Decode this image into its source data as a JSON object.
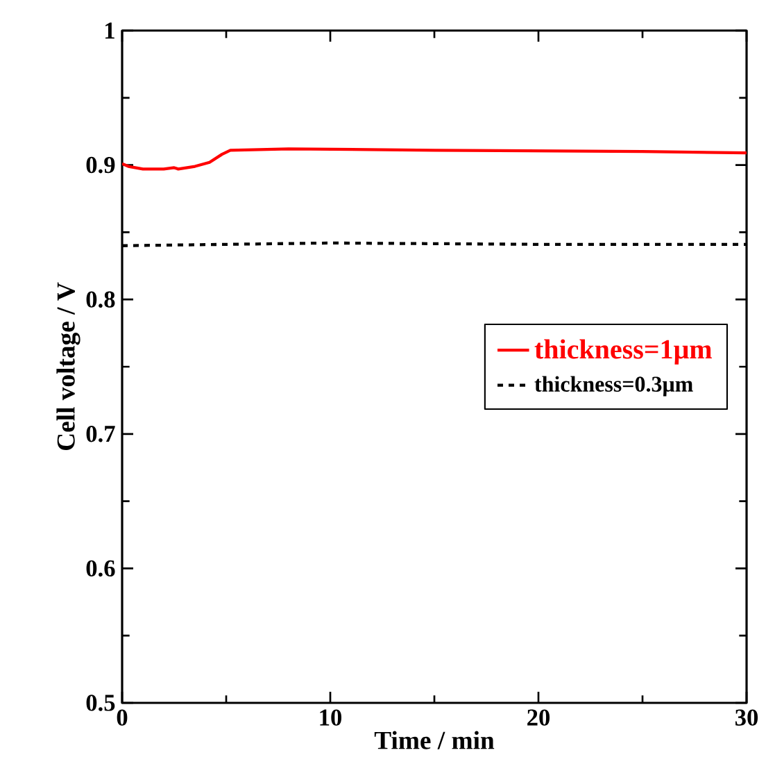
{
  "chart_data": {
    "type": "line",
    "xlabel": "Time / min",
    "ylabel": "Cell voltage / V",
    "xlim": [
      0,
      30
    ],
    "ylim": [
      0.5,
      1
    ],
    "xticks": [
      0,
      10,
      20,
      30
    ],
    "yticks": [
      0.5,
      0.6,
      0.7,
      0.8,
      0.9,
      1
    ],
    "grid": false,
    "legend": "right",
    "series": [
      {
        "name": "thickness=1μm",
        "color": "#ff0000",
        "line_style": "solid",
        "x": [
          0,
          0.3,
          1,
          2,
          2.5,
          2.7,
          3.5,
          4.2,
          4.8,
          5.2,
          8,
          15,
          25,
          30
        ],
        "values": [
          0.901,
          0.899,
          0.897,
          0.897,
          0.898,
          0.897,
          0.899,
          0.902,
          0.908,
          0.911,
          0.912,
          0.911,
          0.91,
          0.909
        ]
      },
      {
        "name": "thickness=0.3μm",
        "color": "#000000",
        "line_style": "dashed",
        "x": [
          0,
          5,
          10,
          20,
          30
        ],
        "values": [
          0.84,
          0.841,
          0.842,
          0.841,
          0.841
        ]
      }
    ]
  }
}
